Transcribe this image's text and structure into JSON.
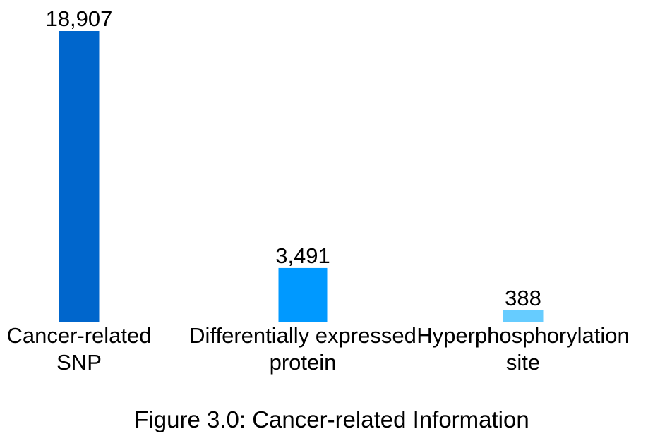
{
  "chart_data": {
    "type": "bar",
    "categories": [
      [
        "Cancer-related",
        "SNP"
      ],
      [
        "Differentially expressed",
        "protein"
      ],
      [
        "Hyperphosphorylation",
        "site"
      ]
    ],
    "values": [
      18907,
      3491,
      388
    ],
    "value_labels": [
      "18,907",
      "3,491",
      "388"
    ],
    "bar_colors": [
      "#0066CC",
      "#0099FF",
      "#66CCFF"
    ],
    "ylim": [
      0,
      18907
    ],
    "grid": false,
    "legend": "none"
  },
  "caption": "Figure 3.0: Cancer-related Information"
}
